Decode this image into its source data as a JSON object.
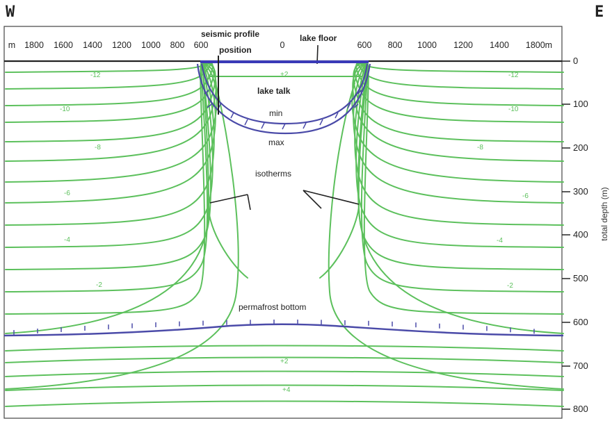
{
  "directions": {
    "west": "W",
    "east": "E"
  },
  "x_ticks": [
    "m",
    "1800",
    "1600",
    "1400",
    "1200",
    "1000",
    "800",
    "600",
    "0",
    "600",
    "800",
    "1000",
    "1200",
    "1400",
    "1800m"
  ],
  "y_ticks": [
    "0",
    "100",
    "200",
    "300",
    "400",
    "500",
    "600",
    "700",
    "800"
  ],
  "y_axis_label": "total depth (m)",
  "isotherm_labels": {
    "left": [
      "-12",
      "-10",
      "-8",
      "-6",
      "-4",
      "-2"
    ],
    "right": [
      "-12",
      "-10",
      "-8",
      "-6",
      "-4",
      "-2"
    ],
    "lake": "+2",
    "below": [
      "+2",
      "+4"
    ]
  },
  "annotations": {
    "seismic_profile": "seismic profile",
    "position": "position",
    "lake_floor": "lake floor",
    "lake_talk": "lake talk",
    "min": "min",
    "max": "max",
    "isotherms": "isotherms",
    "permafrost_bottom": "permafrost bottom"
  },
  "colors": {
    "isotherm": "#5cc05c",
    "permafrost": "#4a4aa8",
    "lake_floor": "#3a3ab8",
    "axis": "#222222"
  }
}
